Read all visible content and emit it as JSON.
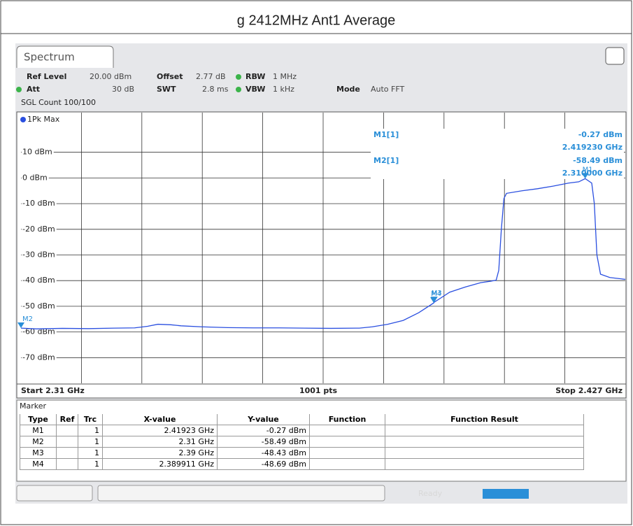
{
  "header": {
    "title": "g 2412MHz Ant1 Average"
  },
  "tab": "Spectrum",
  "settings": [
    {
      "label": "Ref Level",
      "value": "20.00 dBm"
    },
    {
      "label": "Offset",
      "value": "2.77 dB"
    },
    {
      "label": "RBW",
      "value": "1 MHz"
    },
    {
      "label": "Att",
      "value": "30 dB"
    },
    {
      "label": "SWT",
      "value": "2.8 ms"
    },
    {
      "label": "VBW",
      "value": "1 kHz"
    },
    {
      "label": "Mode",
      "value": "Auto FFT"
    }
  ],
  "sweep": "SGL Count 100/100",
  "chart_data": {
    "type": "line",
    "trace_label": "1Pk Max",
    "xlim": [
      2.31,
      2.427
    ],
    "ylim": [
      -80,
      20
    ],
    "yticks": [
      {
        "value": 10,
        "label": "10 dBm"
      },
      {
        "value": 0,
        "label": "0 dBm"
      },
      {
        "value": -10,
        "label": "-10 dBm"
      },
      {
        "value": -20,
        "label": "-20 dBm"
      },
      {
        "value": -30,
        "label": "-30 dBm"
      },
      {
        "value": -40,
        "label": "-40 dBm"
      },
      {
        "value": -50,
        "label": "-50 dBm"
      },
      {
        "value": -60,
        "label": "-60 dBm"
      },
      {
        "value": -70,
        "label": "-70 dBm"
      }
    ],
    "xgrid_divisions": 10,
    "grid": true,
    "series": [
      {
        "name": "1",
        "color": "#2a4fe0",
        "x": [
          2.31,
          2.313,
          2.318,
          2.323,
          2.328,
          2.332,
          2.3345,
          2.3365,
          2.339,
          2.341,
          2.345,
          2.35,
          2.355,
          2.36,
          2.365,
          2.37,
          2.3755,
          2.378,
          2.381,
          2.384,
          2.387,
          2.389911,
          2.39,
          2.393,
          2.396,
          2.399,
          2.401,
          2.402,
          2.4025,
          2.403,
          2.4035,
          2.404,
          2.407,
          2.41,
          2.413,
          2.416,
          2.418,
          2.41923,
          2.4205,
          2.421,
          2.4215,
          2.4222,
          2.424,
          2.427
        ],
        "values": [
          -58.5,
          -58.8,
          -58.6,
          -58.7,
          -58.5,
          -58.4,
          -57.8,
          -57.0,
          -57.2,
          -57.6,
          -58.0,
          -58.3,
          -58.4,
          -58.4,
          -58.5,
          -58.6,
          -58.5,
          -58.0,
          -57.0,
          -55.5,
          -52.5,
          -48.69,
          -48.43,
          -44.5,
          -42.5,
          -40.8,
          -40.2,
          -39.8,
          -36,
          -20,
          -8,
          -6,
          -5,
          -4.2,
          -3.2,
          -2.0,
          -1.5,
          -0.27,
          -2.0,
          -10.0,
          -30.0,
          -37.5,
          -38.8,
          -39.5
        ]
      }
    ],
    "markers": [
      {
        "name": "M1",
        "x": 2.41923,
        "y": -0.27
      },
      {
        "name": "M2",
        "x": 2.31,
        "y": -58.49
      },
      {
        "name": "M3",
        "x": 2.39,
        "y": -48.43
      },
      {
        "name": "M4",
        "x": 2.389911,
        "y": -48.69
      }
    ],
    "readouts": [
      [
        "M1[1]",
        "-0.27 dBm",
        "2.419230 GHz"
      ],
      [
        "M2[1]",
        "-58.49 dBm",
        "2.310000 GHz"
      ]
    ],
    "start": "Start 2.31 GHz",
    "points": "1001 pts",
    "stop": "Stop 2.427 GHz"
  },
  "table": {
    "title": "Marker",
    "columns": [
      "Type",
      "Ref",
      "Trc",
      "X-value",
      "Y-value",
      "Function",
      "Function Result"
    ],
    "rows": [
      [
        "M1",
        "",
        "1",
        "2.41923 GHz",
        "-0.27 dBm",
        "",
        ""
      ],
      [
        "M2",
        "",
        "1",
        "2.31 GHz",
        "-58.49 dBm",
        "",
        ""
      ],
      [
        "M3",
        "",
        "1",
        "2.39 GHz",
        "-48.43 dBm",
        "",
        ""
      ],
      [
        "M4",
        "",
        "1",
        "2.389911 GHz",
        "-48.69 dBm",
        "",
        ""
      ]
    ]
  },
  "status": "Ready"
}
